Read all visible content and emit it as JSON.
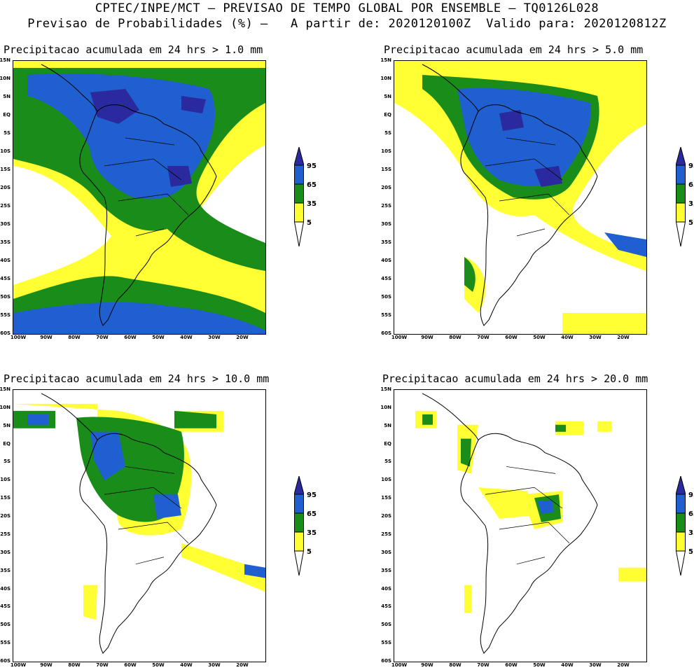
{
  "header": {
    "line1": "CPTEC/INPE/MCT – PREVISAO DE TEMPO GLOBAL POR ENSEMBLE – TQ0126L028",
    "line2": "Previsao de Probabilidades (%) –   A partir de: 2020120100Z  Valido para: 2020120812Z"
  },
  "panels": [
    {
      "title": "Precipitacao acumulada em 24 hrs > 1.0 mm"
    },
    {
      "title": "Precipitacao acumulada em 24 hrs > 5.0 mm"
    },
    {
      "title": "Precipitacao acumulada em 24 hrs > 10.0 mm"
    },
    {
      "title": "Precipitacao acumulada em 24 hrs > 20.0 mm"
    }
  ],
  "axes": {
    "lat_labels": [
      "15N",
      "10N",
      "5N",
      "EQ",
      "5S",
      "10S",
      "15S",
      "20S",
      "25S",
      "30S",
      "35S",
      "40S",
      "45S",
      "50S",
      "55S",
      "60S"
    ],
    "lon_labels": [
      "100W",
      "90W",
      "80W",
      "70W",
      "60W",
      "50W",
      "40W",
      "30W",
      "20W"
    ]
  },
  "colorbar": {
    "labels": [
      "95",
      "65",
      "35",
      "5"
    ],
    "colors": {
      "c95": "#2a2a9e",
      "c65": "#1f5fcf",
      "c35": "#1a8c1a",
      "c5": "#ffff33"
    }
  }
}
